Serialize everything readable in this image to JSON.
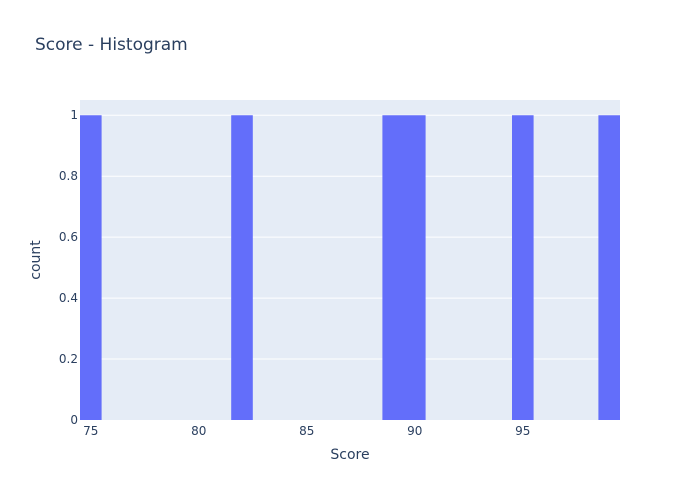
{
  "chart_data": {
    "type": "bar",
    "title": "Score - Histogram",
    "xlabel": "Score",
    "ylabel": "count",
    "xlim": [
      74.5,
      99.5
    ],
    "ylim": [
      0,
      1.05
    ],
    "bin_width": 1,
    "bins": [
      {
        "start": 74.5,
        "end": 75.5,
        "count": 1
      },
      {
        "start": 81.5,
        "end": 82.5,
        "count": 1
      },
      {
        "start": 88.5,
        "end": 89.5,
        "count": 1
      },
      {
        "start": 89.5,
        "end": 90.5,
        "count": 1
      },
      {
        "start": 94.5,
        "end": 95.5,
        "count": 1
      },
      {
        "start": 98.5,
        "end": 99.5,
        "count": 1
      }
    ],
    "x_ticks": [
      75,
      80,
      85,
      90,
      95
    ],
    "x_tick_labels": [
      "75",
      "80",
      "85",
      "90",
      "95"
    ],
    "y_ticks": [
      0,
      0.2,
      0.4,
      0.6,
      0.8,
      1
    ],
    "y_tick_labels": [
      "0",
      "0.2",
      "0.4",
      "0.6",
      "0.8",
      "1"
    ],
    "grid": true,
    "colors": {
      "bar": "#636efa",
      "plot_bg": "#e5ecf6",
      "grid": "#ffffff",
      "text": "#2a3f5f"
    }
  }
}
